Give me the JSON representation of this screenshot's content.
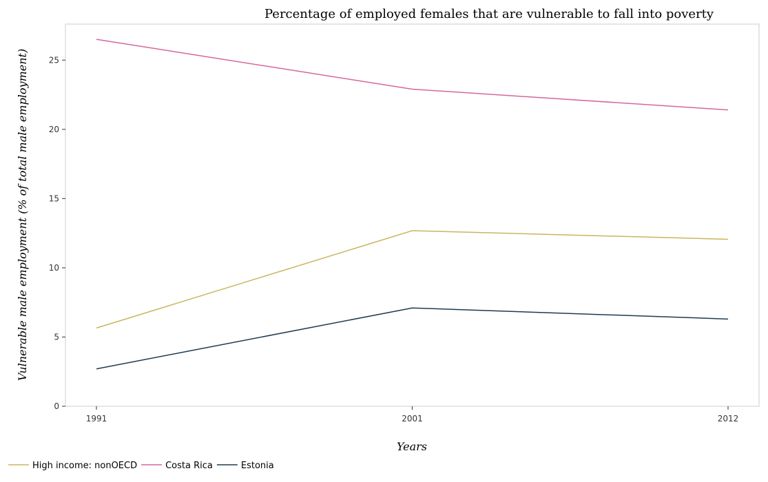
{
  "chart_data": {
    "type": "line",
    "title": "Percentage of employed females that are vulnerable to fall into poverty",
    "xlabel": "Years",
    "ylabel": "Vulnerable male employment (% of total male employment)",
    "categories": [
      "1991",
      "2001",
      "2012"
    ],
    "ylim": [
      0,
      27.6
    ],
    "yticks": [
      0,
      5,
      10,
      15,
      20,
      25
    ],
    "grid": false,
    "legend_position": "bottom-left",
    "series": [
      {
        "name": "High income: nonOECD",
        "color": "#c8b560",
        "values": [
          5.65,
          12.68,
          12.06
        ]
      },
      {
        "name": "Costa Rica",
        "color": "#d4679a",
        "values": [
          26.5,
          22.9,
          21.4
        ]
      },
      {
        "name": "Estonia",
        "color": "#1f3a4d",
        "values": [
          2.7,
          7.1,
          6.3
        ]
      }
    ]
  }
}
